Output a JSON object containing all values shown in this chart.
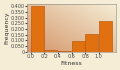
{
  "bar_lefts": [
    0.0,
    0.2,
    0.4,
    0.6,
    0.8,
    1.0
  ],
  "bar_heights": [
    0.4,
    0.018,
    0.005,
    0.09,
    0.16,
    0.27
  ],
  "bar_width": 0.19,
  "bar_color": "#E07010",
  "bar_edgecolor": "#B05000",
  "xlabel": "Fitness",
  "ylabel": "Frequency",
  "xlim": [
    -0.05,
    1.25
  ],
  "ylim": [
    0,
    0.42
  ],
  "xticks": [
    0,
    0.2,
    0.4,
    0.6,
    0.8,
    1.0
  ],
  "ytick_labels": [
    "0",
    "0.050",
    "0.100",
    "0.150",
    "0.200",
    "0.250",
    "0.300",
    "0.350",
    "0.400"
  ],
  "ytick_vals": [
    0,
    0.05,
    0.1,
    0.15,
    0.2,
    0.25,
    0.3,
    0.35,
    0.4
  ],
  "bg_color_topleft": "#D4956A",
  "bg_color_bottomright": "#F5EDD5",
  "tick_fontsize": 3.5,
  "label_fontsize": 4.5
}
